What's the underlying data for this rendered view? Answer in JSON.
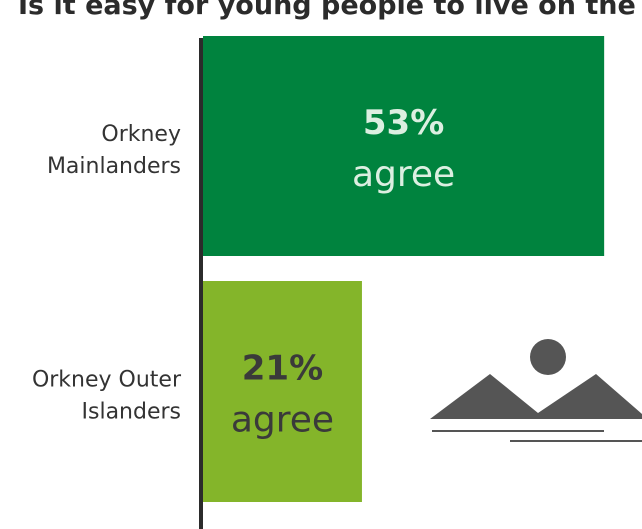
{
  "chart_data": {
    "type": "bar",
    "orientation": "horizontal",
    "title": "Is it easy for young people to live on the is",
    "categories": [
      "Orkney Mainlanders",
      "Orkney Outer Islanders"
    ],
    "category_label_lines": [
      [
        "Orkney",
        "Mainlanders"
      ],
      [
        "Orkney Outer",
        "Islanders"
      ]
    ],
    "values": [
      53,
      21
    ],
    "value_labels": [
      "53%",
      "21%"
    ],
    "sub_labels": [
      "agree",
      "agree"
    ],
    "colors": [
      "#00833e",
      "#84b52a"
    ],
    "pct_text_colors": [
      "#dcefe1",
      "#3a3a3a"
    ],
    "word_text_colors": [
      "#dcefe1",
      "#3a3a3a"
    ],
    "xlim": [
      0,
      58
    ],
    "grid": false,
    "legend": "none",
    "icon": "landscape-image-icon"
  }
}
